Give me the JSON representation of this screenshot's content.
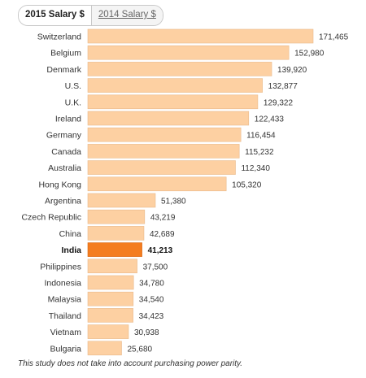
{
  "tabs": [
    {
      "label": "2015 Salary $",
      "active": true
    },
    {
      "label": "2014 Salary $",
      "active": false
    }
  ],
  "footnote": "This study does not take into account purchasing power parity.",
  "colors": {
    "bar": "#fdd0a2",
    "bar_stroke": "#e9b98a",
    "highlight": "#f47d20",
    "highlight_stroke": "#d8650f"
  },
  "chart_data": {
    "type": "bar",
    "orientation": "horizontal",
    "categories": [
      "Switzerland",
      "Belgium",
      "Denmark",
      "U.S.",
      "U.K.",
      "Ireland",
      "Germany",
      "Canada",
      "Australia",
      "Hong Kong",
      "Argentina",
      "Czech Republic",
      "China",
      "India",
      "Philippines",
      "Indonesia",
      "Malaysia",
      "Thailand",
      "Vietnam",
      "Bulgaria"
    ],
    "values": [
      171465,
      152980,
      139920,
      132877,
      129322,
      122433,
      116454,
      115232,
      112340,
      105320,
      51380,
      43219,
      42689,
      41213,
      37500,
      34780,
      34540,
      34423,
      30938,
      25680
    ],
    "value_labels": [
      "171,465",
      "152,980",
      "139,920",
      "132,877",
      "129,322",
      "122,433",
      "116,454",
      "115,232",
      "112,340",
      "105,320",
      "51,380",
      "43,219",
      "42,689",
      "41,213",
      "37,500",
      "34,780",
      "34,540",
      "34,423",
      "30,938",
      "25,680"
    ],
    "highlight": "India",
    "grid": false,
    "legend": "none"
  }
}
